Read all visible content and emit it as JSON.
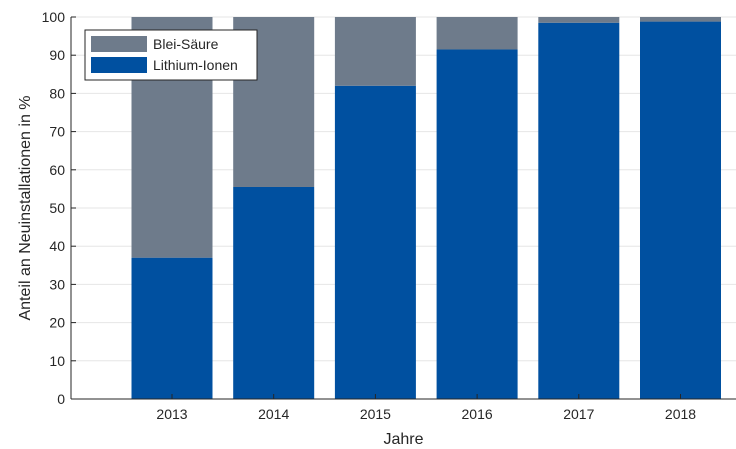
{
  "chart_data": {
    "type": "bar",
    "stacked": true,
    "categories": [
      "2013",
      "2014",
      "2015",
      "2016",
      "2017",
      "2018"
    ],
    "series": [
      {
        "name": "Lithium-Ionen",
        "values": [
          37,
          55.5,
          82,
          91.5,
          98.5,
          98.8
        ],
        "color": "#0050a0"
      },
      {
        "name": "Blei-Säure",
        "values": [
          63,
          44.5,
          18,
          8.5,
          1.5,
          1.2
        ],
        "color": "#6e7b8b"
      }
    ],
    "xlabel": "Jahre",
    "ylabel": "Anteil an Neuinstallationen in %",
    "ylim": [
      0,
      100
    ],
    "yticks": [
      0,
      10,
      20,
      30,
      40,
      50,
      60,
      70,
      80,
      90,
      100
    ],
    "grid": "horizontal",
    "legend": {
      "position": "top-left",
      "entries": [
        "Blei-Säure",
        "Lithium-Ionen"
      ]
    },
    "colors": {
      "background": "#ffffff",
      "grid": "#e6e6e6",
      "axis": "#262626"
    }
  }
}
